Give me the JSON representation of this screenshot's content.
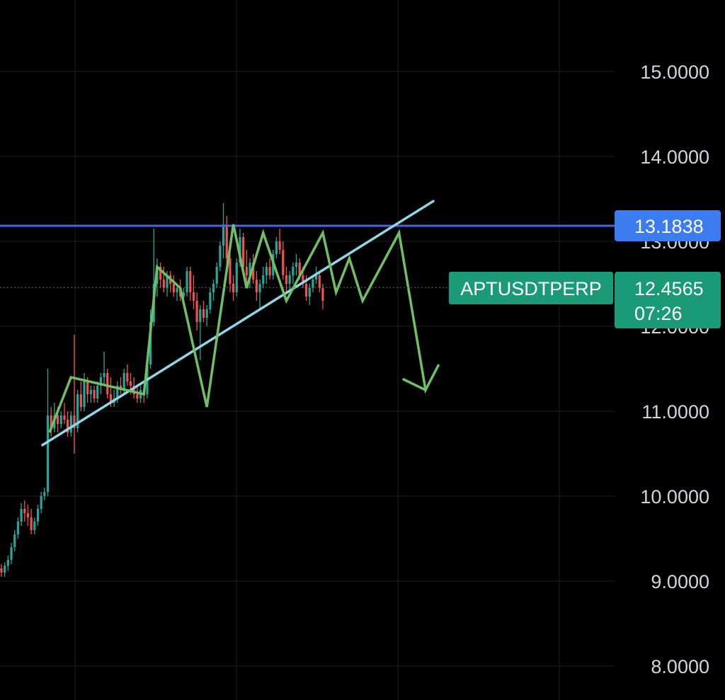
{
  "chart_data": {
    "type": "candlestick",
    "symbol": "APTUSDTPERP",
    "ylim": [
      7.75,
      15.8
    ],
    "y_ticks": [
      "15.0000",
      "14.0000",
      "13.0000",
      "12.0000",
      "11.0000",
      "10.0000",
      "9.0000",
      "8.0000"
    ],
    "y_tick_values": [
      15,
      14,
      13,
      12,
      11,
      10,
      9,
      8
    ],
    "grid": true,
    "candle_count": 98,
    "candles": [
      [
        9.15,
        9.2,
        9.05,
        9.1
      ],
      [
        9.1,
        9.22,
        9.05,
        9.18
      ],
      [
        9.18,
        9.3,
        9.12,
        9.25
      ],
      [
        9.25,
        9.45,
        9.2,
        9.4
      ],
      [
        9.4,
        9.6,
        9.35,
        9.55
      ],
      [
        9.55,
        9.75,
        9.5,
        9.7
      ],
      [
        9.7,
        9.92,
        9.65,
        9.85
      ],
      [
        9.85,
        9.95,
        9.7,
        9.8
      ],
      [
        9.8,
        9.9,
        9.65,
        9.75
      ],
      [
        9.75,
        9.85,
        9.55,
        9.6
      ],
      [
        9.6,
        9.75,
        9.55,
        9.7
      ],
      [
        9.7,
        9.9,
        9.65,
        9.85
      ],
      [
        9.85,
        10.05,
        9.8,
        10.0
      ],
      [
        10.0,
        10.1,
        9.95,
        10.05
      ],
      [
        10.05,
        11.5,
        10.0,
        10.95
      ],
      [
        10.95,
        11.05,
        10.7,
        10.8
      ],
      [
        10.8,
        11.1,
        10.75,
        10.95
      ],
      [
        10.95,
        11.05,
        10.75,
        10.85
      ],
      [
        10.85,
        11.0,
        10.8,
        10.95
      ],
      [
        10.95,
        11.1,
        10.85,
        10.9
      ],
      [
        10.9,
        11.0,
        10.7,
        10.75
      ],
      [
        10.75,
        11.0,
        10.7,
        10.95
      ],
      [
        10.95,
        11.9,
        10.5,
        10.8
      ],
      [
        10.8,
        11.25,
        10.75,
        11.2
      ],
      [
        11.2,
        11.35,
        11.0,
        11.05
      ],
      [
        11.05,
        11.45,
        11.0,
        11.35
      ],
      [
        11.35,
        11.4,
        11.1,
        11.2
      ],
      [
        11.2,
        11.3,
        11.1,
        11.25
      ],
      [
        11.25,
        11.3,
        11.1,
        11.15
      ],
      [
        11.15,
        11.35,
        11.1,
        11.3
      ],
      [
        11.3,
        11.45,
        11.2,
        11.4
      ],
      [
        11.4,
        11.7,
        11.3,
        11.45
      ],
      [
        11.45,
        11.5,
        11.15,
        11.2
      ],
      [
        11.2,
        11.4,
        11.05,
        11.1
      ],
      [
        11.1,
        11.25,
        11.05,
        11.15
      ],
      [
        11.15,
        11.35,
        11.1,
        11.3
      ],
      [
        11.3,
        11.4,
        11.2,
        11.25
      ],
      [
        11.25,
        11.5,
        11.2,
        11.45
      ],
      [
        11.45,
        11.55,
        11.3,
        11.35
      ],
      [
        11.35,
        11.45,
        11.2,
        11.3
      ],
      [
        11.3,
        11.4,
        11.15,
        11.2
      ],
      [
        11.2,
        11.3,
        11.1,
        11.15
      ],
      [
        11.15,
        11.3,
        11.1,
        11.25
      ],
      [
        11.25,
        11.3,
        11.1,
        11.2
      ],
      [
        11.2,
        11.6,
        11.15,
        11.55
      ],
      [
        11.55,
        12.2,
        11.5,
        12.05
      ],
      [
        12.05,
        13.15,
        12.0,
        12.5
      ],
      [
        12.5,
        12.8,
        12.35,
        12.7
      ],
      [
        12.7,
        12.75,
        12.45,
        12.55
      ],
      [
        12.55,
        12.7,
        12.4,
        12.45
      ],
      [
        12.45,
        12.65,
        12.35,
        12.6
      ],
      [
        12.6,
        12.65,
        12.4,
        12.5
      ],
      [
        12.5,
        12.6,
        12.35,
        12.4
      ],
      [
        12.4,
        12.5,
        12.3,
        12.45
      ],
      [
        12.45,
        12.55,
        12.3,
        12.35
      ],
      [
        12.35,
        12.45,
        12.25,
        12.4
      ],
      [
        12.4,
        12.7,
        12.35,
        12.65
      ],
      [
        12.65,
        12.7,
        12.3,
        12.4
      ],
      [
        12.4,
        12.6,
        12.2,
        12.3
      ],
      [
        12.3,
        12.4,
        11.95,
        12.05
      ],
      [
        12.05,
        12.25,
        11.6,
        12.2
      ],
      [
        12.2,
        12.3,
        12.05,
        12.1
      ],
      [
        12.1,
        12.25,
        12.0,
        12.2
      ],
      [
        12.2,
        12.45,
        12.15,
        12.4
      ],
      [
        12.4,
        12.55,
        12.3,
        12.5
      ],
      [
        12.5,
        12.75,
        12.45,
        12.7
      ],
      [
        12.7,
        13.0,
        12.65,
        12.95
      ],
      [
        12.95,
        13.45,
        12.8,
        13.2
      ],
      [
        13.2,
        13.3,
        12.7,
        12.8
      ],
      [
        12.8,
        12.9,
        12.4,
        12.5
      ],
      [
        12.5,
        12.6,
        12.3,
        12.4
      ],
      [
        12.4,
        12.8,
        12.35,
        12.75
      ],
      [
        12.75,
        13.15,
        12.7,
        13.05
      ],
      [
        13.05,
        13.1,
        12.6,
        12.7
      ],
      [
        12.7,
        12.9,
        12.5,
        12.6
      ],
      [
        12.6,
        12.8,
        12.45,
        12.75
      ],
      [
        12.75,
        12.85,
        12.5,
        12.55
      ],
      [
        12.55,
        12.65,
        12.3,
        12.4
      ],
      [
        12.4,
        12.55,
        12.2,
        12.5
      ],
      [
        12.5,
        12.7,
        12.45,
        12.6
      ],
      [
        12.6,
        12.75,
        12.5,
        12.7
      ],
      [
        12.7,
        12.8,
        12.55,
        12.6
      ],
      [
        12.6,
        12.9,
        12.55,
        12.85
      ],
      [
        12.85,
        13.05,
        12.8,
        13.0
      ],
      [
        13.0,
        13.15,
        12.85,
        12.9
      ],
      [
        12.9,
        13.0,
        12.55,
        12.6
      ],
      [
        12.6,
        12.7,
        12.4,
        12.5
      ],
      [
        12.5,
        12.65,
        12.4,
        12.6
      ],
      [
        12.6,
        12.75,
        12.5,
        12.7
      ],
      [
        12.7,
        12.85,
        12.6,
        12.75
      ],
      [
        12.75,
        12.8,
        12.55,
        12.6
      ],
      [
        12.6,
        12.7,
        12.45,
        12.5
      ],
      [
        12.5,
        12.6,
        12.3,
        12.35
      ],
      [
        12.35,
        12.5,
        12.25,
        12.45
      ],
      [
        12.45,
        12.6,
        12.4,
        12.55
      ],
      [
        12.55,
        12.7,
        12.5,
        12.6
      ],
      [
        12.6,
        12.65,
        12.4,
        12.45
      ],
      [
        12.45,
        12.5,
        12.2,
        12.3
      ]
    ],
    "resistance_level": 13.1838,
    "trendline_support": [
      [
        0,
        10.3
      ],
      [
        115,
        13.1
      ]
    ],
    "wave_pattern": [
      [
        14.5,
        10.75
      ],
      [
        21,
        11.4
      ],
      [
        43,
        11.2
      ],
      [
        47,
        12.7
      ],
      [
        54,
        12.45
      ],
      [
        62,
        11.05
      ],
      [
        70,
        13.2
      ],
      [
        74,
        12.45
      ],
      [
        79,
        13.1
      ],
      [
        86,
        12.3
      ],
      [
        97,
        13.1
      ],
      [
        101,
        12.4
      ],
      [
        105,
        12.8
      ],
      [
        109,
        12.3
      ],
      [
        120,
        13.1
      ],
      [
        128,
        11.25
      ],
      [
        132,
        11.55
      ]
    ],
    "wave_arrow_tip": [
      128,
      11.25
    ],
    "last_price": "12.4565",
    "resistance_label": "13.1838",
    "countdown": "07:26"
  },
  "colors": {
    "background": "#000000",
    "grid": "#1e1e1e",
    "up_candle": "#26a69a",
    "down_candle": "#ef5350",
    "resistance_line": "#4a63e0",
    "resistance_tag": "#3c7cf0",
    "trendline": "#8fd6e6",
    "wave": "#6fc064",
    "last_price_tag": "#1b9a78",
    "symbol_tag": "#1b9a78",
    "axis_text": "#d1d4dc",
    "price_line": "#666666"
  },
  "labels": {
    "symbol": "APTUSDTPERP",
    "last_price": "12.4565",
    "countdown": "07:26",
    "resistance": "13.1838"
  }
}
